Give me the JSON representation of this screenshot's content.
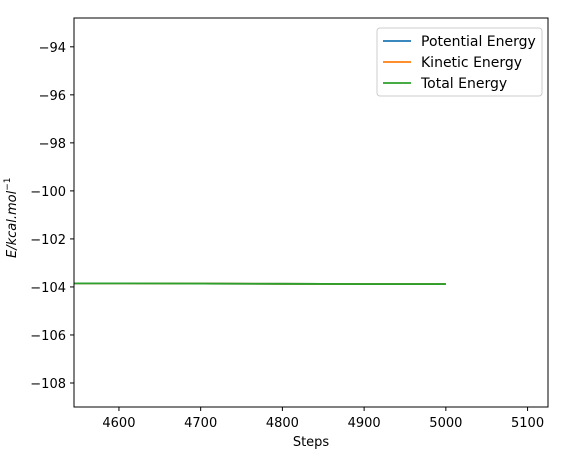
{
  "chart_data": {
    "type": "line",
    "title": "",
    "xlabel": "Steps",
    "ylabel_main": "E/kcal.mol",
    "ylabel_sup": "−1",
    "xlim": [
      4545,
      5125
    ],
    "ylim": [
      -109,
      -92.8
    ],
    "xticks": [
      4600,
      4700,
      4800,
      4900,
      5000,
      5100
    ],
    "xtick_labels": [
      "4600",
      "4700",
      "4800",
      "4900",
      "5000",
      "5100"
    ],
    "yticks": [
      -94,
      -96,
      -98,
      -100,
      -102,
      -104,
      -106,
      -108
    ],
    "ytick_labels": [
      "−94",
      "−96",
      "−98",
      "−100",
      "−102",
      "−104",
      "−106",
      "−108"
    ],
    "grid": false,
    "legend_position": "top-right",
    "x": [
      4545,
      4600,
      4700,
      4800,
      4900,
      5000
    ],
    "series": [
      {
        "name": "Potential Energy",
        "color": "#1f77b4",
        "values": [
          -103.85,
          -103.85,
          -103.86,
          -103.87,
          -103.88,
          -103.88
        ]
      },
      {
        "name": "Kinetic Energy",
        "color": "#ff7f0e",
        "values": [
          -103.85,
          -103.85,
          -103.86,
          -103.87,
          -103.88,
          -103.88
        ]
      },
      {
        "name": "Total Energy",
        "color": "#2ca02c",
        "values": [
          -103.85,
          -103.85,
          -103.86,
          -103.87,
          -103.88,
          -103.88
        ]
      }
    ]
  }
}
